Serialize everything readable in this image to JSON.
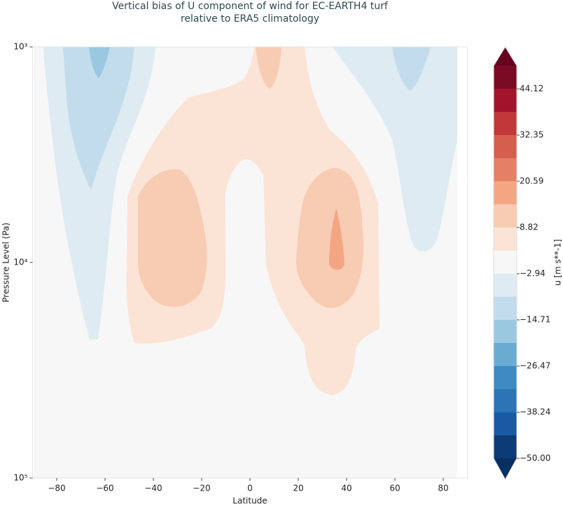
{
  "chart_data": {
    "type": "contour",
    "title": [
      "Vertical bias of U component of wind for EC-EARTH4 turf",
      "relative to ERA5 climatology"
    ],
    "xlabel": "Latitude",
    "ylabel": "Pressure Level (Pa)",
    "xlim": [
      -90,
      90
    ],
    "xticks": [
      {
        "value": -80,
        "label": "−80"
      },
      {
        "value": -60,
        "label": "−60"
      },
      {
        "value": -40,
        "label": "−40"
      },
      {
        "value": -20,
        "label": "−20"
      },
      0,
      20,
      40,
      60,
      80
    ],
    "ylim": [
      100000,
      1000
    ],
    "yscale": "log",
    "yticks": [
      {
        "value": 1000,
        "label": "10³"
      },
      {
        "value": 10000,
        "label": "10⁴"
      },
      {
        "value": 100000,
        "label": "10⁵"
      }
    ],
    "colorbar": {
      "label": "u [m s**-1]",
      "levels": [
        -50,
        -44.12,
        -38.24,
        -32.35,
        -26.47,
        -20.59,
        -14.71,
        -8.82,
        -2.94,
        2.94,
        8.82,
        14.71,
        20.59,
        26.47,
        32.35,
        38.24,
        44.12,
        50
      ],
      "colors": [
        "#0d3b75",
        "#1a5aa3",
        "#2c74b5",
        "#3d8bc2",
        "#6aabd2",
        "#9bc8e1",
        "#c2dcec",
        "#deebf3",
        "#f7f7f7",
        "#fbe3d6",
        "#f8cbb3",
        "#f4a683",
        "#e58066",
        "#d55e4e",
        "#c2383a",
        "#a3142c",
        "#7b0a24"
      ],
      "under_color": "#053061",
      "over_color": "#67001f",
      "ticks": [
        {
          "value": -50,
          "label": "−50.00"
        },
        {
          "value": -38.24,
          "label": "−38.24"
        },
        {
          "value": -26.47,
          "label": "−26.47"
        },
        {
          "value": -14.71,
          "label": "−14.71"
        },
        {
          "value": -2.94,
          "label": "−2.94"
        },
        8.82,
        20.59,
        32.35,
        44.12
      ]
    }
  }
}
